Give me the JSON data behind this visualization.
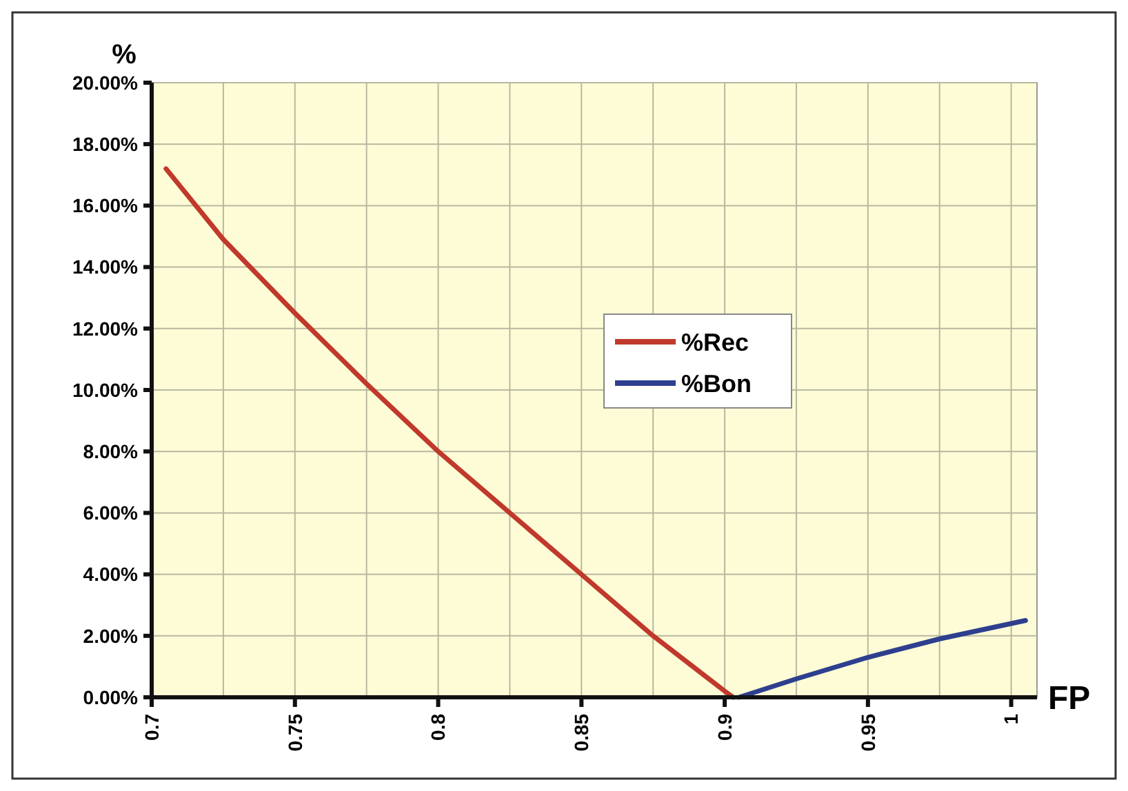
{
  "chart_data": {
    "type": "line",
    "xlabel": "FP",
    "ylabel": "%",
    "series": [
      {
        "name": "%Rec",
        "color": "#c0392b",
        "x": [
          0.705,
          0.725,
          0.75,
          0.775,
          0.8,
          0.825,
          0.85,
          0.875,
          0.9,
          0.903
        ],
        "values": [
          17.2,
          14.9,
          12.5,
          10.2,
          8.0,
          6.0,
          4.0,
          2.0,
          0.2,
          0
        ]
      },
      {
        "name": "%Bon",
        "color": "#2e3f8f",
        "x": [
          0.905,
          0.925,
          0.95,
          0.975,
          1.005
        ],
        "values": [
          0,
          0.6,
          1.3,
          1.9,
          2.5
        ]
      }
    ],
    "xlim": [
      0.7,
      1.009
    ],
    "xticks": [
      0.7,
      {
        "value": 0.725,
        "label": null
      },
      0.75,
      {
        "value": 0.775,
        "label": null
      },
      0.8,
      {
        "value": 0.825,
        "label": null
      },
      0.85,
      {
        "value": 0.875,
        "label": null
      },
      0.9,
      {
        "value": 0.925,
        "label": null
      },
      0.95,
      {
        "value": 0.975,
        "label": null
      },
      1
    ],
    "ylim": [
      0,
      20
    ],
    "yticks": [
      {
        "value": 0,
        "label": "0.00%"
      },
      {
        "value": 2,
        "label": "2.00%"
      },
      {
        "value": 4,
        "label": "4.00%"
      },
      {
        "value": 6,
        "label": "6.00%"
      },
      {
        "value": 8,
        "label": "8.00%"
      },
      {
        "value": 10,
        "label": "10.00%"
      },
      {
        "value": 12,
        "label": "12.00%"
      },
      {
        "value": 14,
        "label": "14.00%"
      },
      {
        "value": 16,
        "label": "16.00%"
      },
      {
        "value": 18,
        "label": "18.00%"
      },
      {
        "value": 20,
        "label": "20.00%"
      }
    ],
    "grid": true,
    "legend": "right",
    "marker": "none",
    "line_style": "solid"
  }
}
